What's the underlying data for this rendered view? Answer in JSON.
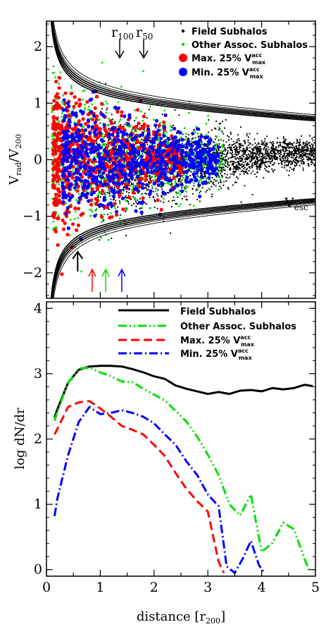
{
  "chart_data": [
    {
      "type": "scatter",
      "ylabel_main": "V",
      "ylabel_sub": "rad",
      "ylabel_mid": "/V",
      "ylabel_sub2": "200",
      "xlim": [
        0,
        5
      ],
      "ylim": [
        -2.45,
        2.45
      ],
      "yticks": [
        -2,
        -1,
        0,
        1,
        2
      ],
      "ytick_labels": [
        "−2",
        "−1",
        "0",
        "1",
        "2"
      ],
      "grid": false,
      "legend_position": "top-right",
      "legend": [
        {
          "key": "field",
          "label": "Field Subhalos",
          "color": "#000000",
          "marker": "small-dot"
        },
        {
          "key": "other",
          "label": "Other Assoc. Subhalos",
          "color": "#00e000",
          "marker": "small-dot"
        },
        {
          "key": "max",
          "label": "Max. 25% V",
          "sup": "acc",
          "sub": "max",
          "color": "#ff0000",
          "marker": "big-dot"
        },
        {
          "key": "min",
          "label": "Min. 25% V",
          "sup": "acc",
          "sub": "max",
          "color": "#0000ff",
          "marker": "big-dot"
        }
      ],
      "annotations": {
        "r100_label": "r",
        "r100_sub": "100",
        "r50_label": "r",
        "r50_sub": "50",
        "r100_x": 1.35,
        "r50_x": 1.8,
        "vesc_label": "V",
        "vesc_sub": "esc",
        "bottom_arrows": [
          {
            "x": 0.58,
            "color": "#000000"
          },
          {
            "x": 0.85,
            "color": "#ff0000"
          },
          {
            "x": 1.1,
            "color": "#00e000"
          },
          {
            "x": 1.4,
            "color": "#0000ff"
          }
        ]
      },
      "escape_curve_k": [
        1.02,
        1.05,
        1.08,
        1.11,
        1.14,
        1.18
      ]
    },
    {
      "type": "line",
      "xlabel": "distance [r",
      "xlabel_sub": "200",
      "xlabel_end": "]",
      "ylabel": "log dN/dr",
      "xlim": [
        0,
        5
      ],
      "ylim": [
        -0.1,
        4.1
      ],
      "xticks": [
        0,
        1,
        2,
        3,
        4,
        5
      ],
      "xtick_labels": [
        "0",
        "1",
        "2",
        "3",
        "4",
        "5"
      ],
      "yticks": [
        0,
        1,
        2,
        3,
        4
      ],
      "ytick_labels": [
        "0",
        "1",
        "2",
        "3",
        "4"
      ],
      "grid": false,
      "legend_position": "top-right",
      "series": [
        {
          "key": "field",
          "name": "Field Subhalos",
          "color": "#000000",
          "dash": "solid",
          "x": [
            0.15,
            0.2,
            0.4,
            0.6,
            0.8,
            1.0,
            1.2,
            1.4,
            1.6,
            1.8,
            2.0,
            2.2,
            2.4,
            2.6,
            2.8,
            3.0,
            3.2,
            3.4,
            3.6,
            3.8,
            4.0,
            4.2,
            4.4,
            4.6,
            4.8,
            4.95
          ],
          "y": [
            2.33,
            2.45,
            2.86,
            3.06,
            3.11,
            3.12,
            3.12,
            3.11,
            3.07,
            3.02,
            2.96,
            2.92,
            2.82,
            2.77,
            2.73,
            2.69,
            2.72,
            2.69,
            2.74,
            2.75,
            2.73,
            2.78,
            2.76,
            2.78,
            2.83,
            2.81
          ]
        },
        {
          "key": "other",
          "name": "Other Assoc. Subhalos",
          "color": "#00e000",
          "dash": "dash-dot-dot",
          "x": [
            0.15,
            0.2,
            0.4,
            0.6,
            0.8,
            1.0,
            1.2,
            1.4,
            1.6,
            1.8,
            2.0,
            2.2,
            2.4,
            2.6,
            2.8,
            3.0,
            3.2,
            3.4,
            3.6,
            3.8,
            4.0,
            4.2,
            4.4,
            4.6,
            4.8,
            4.9
          ],
          "y": [
            2.28,
            2.41,
            2.86,
            3.08,
            3.09,
            3.02,
            2.96,
            2.88,
            2.87,
            2.77,
            2.68,
            2.59,
            2.43,
            2.27,
            2.04,
            1.76,
            1.45,
            1.0,
            0.83,
            1.15,
            0.27,
            0.41,
            0.72,
            0.62,
            0.16,
            -0.05
          ]
        },
        {
          "key": "max",
          "name": "Max. 25% V",
          "sup": "acc",
          "sub": "max",
          "color": "#ff0000",
          "dash": "dashed",
          "x": [
            0.15,
            0.2,
            0.4,
            0.6,
            0.8,
            1.0,
            1.2,
            1.4,
            1.6,
            1.8,
            2.0,
            2.2,
            2.4,
            2.6,
            2.8,
            3.0,
            3.2,
            3.3
          ],
          "y": [
            2.07,
            2.15,
            2.49,
            2.56,
            2.58,
            2.47,
            2.34,
            2.2,
            2.14,
            2.07,
            1.91,
            1.74,
            1.48,
            1.24,
            1.05,
            0.89,
            0.12,
            -0.05
          ]
        },
        {
          "key": "min",
          "name": "Min. 25% V",
          "sup": "acc",
          "sub": "max",
          "color": "#0000ff",
          "dash": "dash-dot",
          "x": [
            0.15,
            0.2,
            0.4,
            0.6,
            0.8,
            1.0,
            1.2,
            1.4,
            1.6,
            1.8,
            2.0,
            2.2,
            2.4,
            2.6,
            2.8,
            3.0,
            3.2,
            3.35,
            3.5,
            3.65,
            3.8,
            3.95,
            4.05
          ],
          "y": [
            0.82,
            1.08,
            1.75,
            2.26,
            2.49,
            2.38,
            2.4,
            2.44,
            2.4,
            2.34,
            2.24,
            2.07,
            1.91,
            1.66,
            1.45,
            1.15,
            0.97,
            0.05,
            -0.05,
            0.17,
            0.44,
            0.07,
            -0.05
          ]
        }
      ]
    }
  ]
}
